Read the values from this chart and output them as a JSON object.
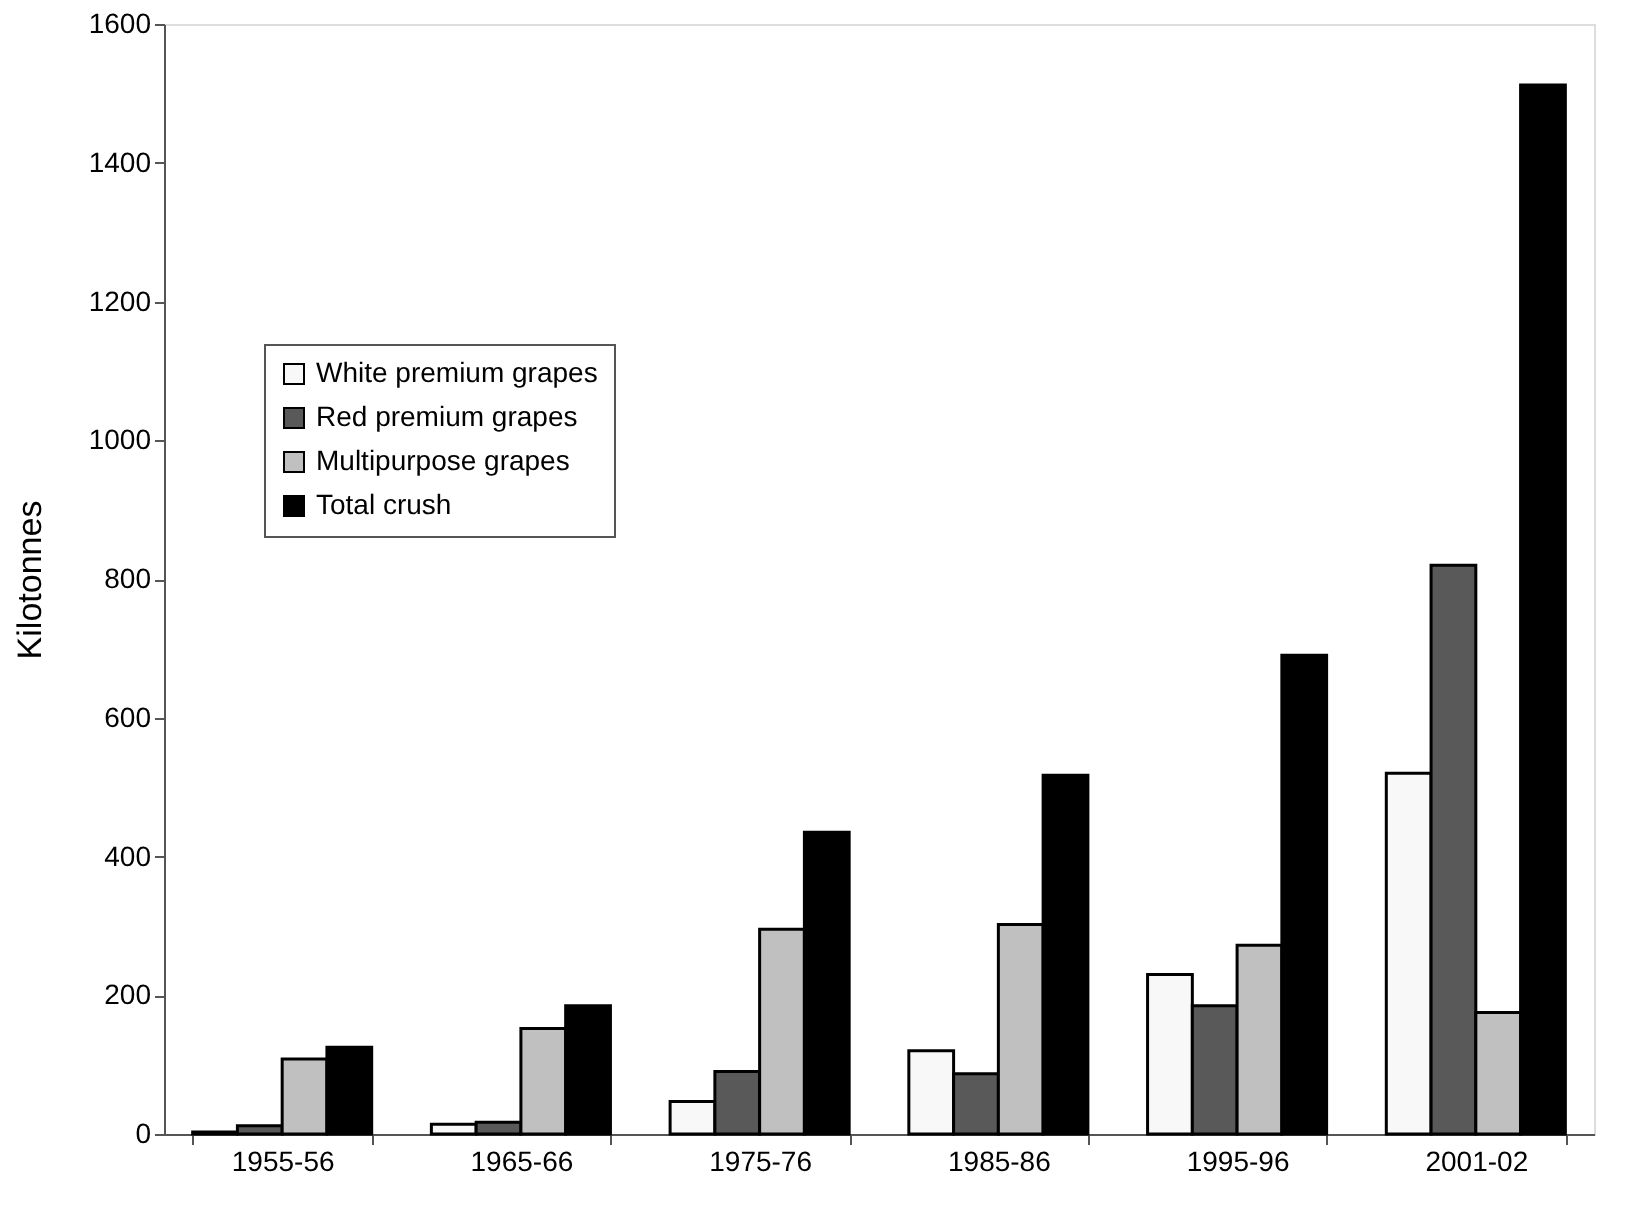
{
  "chart_data": {
    "type": "bar",
    "ylabel": "Kilotonnes",
    "categories": [
      "1955-56",
      "1965-66",
      "1975-76",
      "1985-86",
      "1995-96",
      "2001-02"
    ],
    "series": [
      {
        "name": "White premium grapes",
        "color": "#f8f8f8",
        "values": [
          3,
          14,
          47,
          120,
          230,
          520
        ]
      },
      {
        "name": "Red premium grapes",
        "color": "#595959",
        "values": [
          12,
          17,
          90,
          87,
          185,
          820
        ]
      },
      {
        "name": "Multipurpose grapes",
        "color": "#c0c0c0",
        "values": [
          108,
          152,
          295,
          302,
          272,
          175
        ]
      },
      {
        "name": "Total crush",
        "color": "#000000",
        "values": [
          125,
          185,
          435,
          517,
          690,
          1512
        ]
      }
    ],
    "ylim": [
      0,
      1600
    ],
    "yticks": [
      0,
      200,
      400,
      600,
      800,
      1000,
      1200,
      1400,
      1600
    ],
    "grid": false,
    "legend": "left"
  }
}
